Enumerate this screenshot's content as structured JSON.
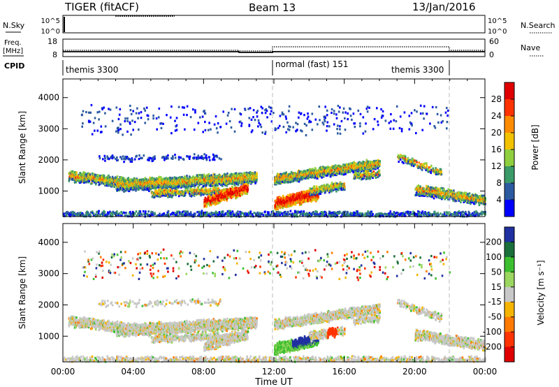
{
  "header": {
    "radar": "TIGER (fitACF)",
    "beam": "Beam 13",
    "date": "13/Jan/2016"
  },
  "top_panel_labels": {
    "nsky": "N.Sky",
    "nsearch": "N.Search",
    "freq_line1": "Freq.",
    "freq_line2": "[MHz]",
    "nave": "Nave",
    "cpid": "CPID",
    "tick_1e5": "10^5",
    "tick_1e0": "10^0",
    "freq_ticks": [
      "18",
      "8"
    ],
    "nave_ticks": [
      "60",
      "0"
    ]
  },
  "cpid_segments": [
    {
      "label": "themis 3300",
      "start_hour": 0
    },
    {
      "label": "normal (fast) 151",
      "start_hour": 12
    },
    {
      "label": "themis 3300",
      "start_hour": 22
    }
  ],
  "colors": {
    "power_scale": [
      "#0000ff",
      "#2c5aa0",
      "#3a9a68",
      "#8fcf3f",
      "#f2c200",
      "#ff8c00",
      "#ff3300",
      "#e00000"
    ],
    "velocity_scale": [
      "#2030a0",
      "#1a6f3a",
      "#3cbf2f",
      "#9ad660",
      "#c8c8c8",
      "#f5b400",
      "#ff7a00",
      "#ff3300",
      "#e00000"
    ]
  },
  "chart_data": [
    {
      "type": "heatmap",
      "title": "",
      "xlabel": "Time UT",
      "ylabel": "Slant Range [km]",
      "x_ticks": [
        "00:00",
        "04:00",
        "08:00",
        "12:00",
        "16:00",
        "20:00",
        "00:00"
      ],
      "y_ticks": [
        "1000",
        "2000",
        "3000",
        "4000"
      ],
      "xlim_hours": [
        0,
        24
      ],
      "ylim_km": [
        180,
        4600
      ],
      "colorbar": {
        "label": "Power [dB]",
        "ticks": [
          "4",
          "8",
          "12",
          "16",
          "20",
          "24",
          "28"
        ],
        "range": [
          0,
          30
        ]
      },
      "grid": false
    },
    {
      "type": "heatmap",
      "title": "",
      "xlabel": "Time UT",
      "ylabel": "Slant Range [km]",
      "x_ticks": [
        "00:00",
        "04:00",
        "08:00",
        "12:00",
        "16:00",
        "20:00",
        "00:00"
      ],
      "y_ticks": [
        "1000",
        "2000",
        "3000",
        "4000"
      ],
      "xlim_hours": [
        0,
        24
      ],
      "ylim_km": [
        180,
        4600
      ],
      "colorbar": {
        "label": "Velocity [m s⁻¹]",
        "ticks": [
          "200",
          "100",
          "50",
          "15",
          "-15",
          "-50",
          "-100",
          "-200"
        ],
        "range": [
          -250,
          250
        ]
      },
      "grid": false
    }
  ]
}
